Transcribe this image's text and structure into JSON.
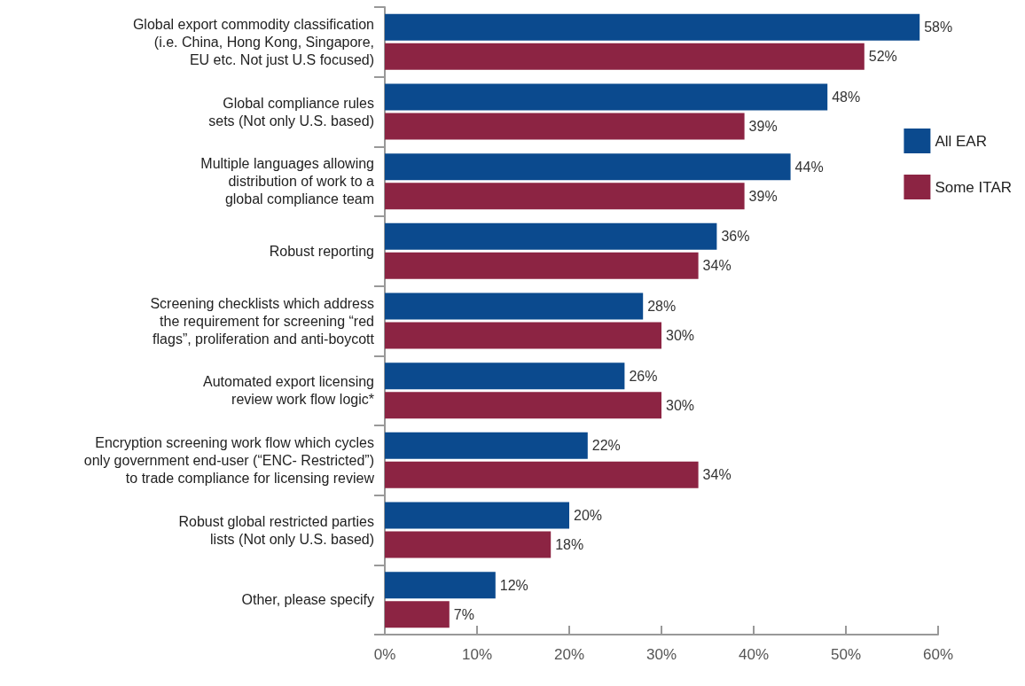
{
  "chart_data": {
    "type": "bar",
    "orientation": "horizontal",
    "categories": [
      "Global export commodity classification\n(i.e. China, Hong Kong, Singapore,\nEU etc. Not just U.S focused)",
      "Global compliance rules\nsets (Not only U.S. based)",
      "Multiple languages allowing\ndistribution of work to a\nglobal compliance team",
      "Robust reporting",
      "Screening checklists which address\nthe requirement for screening “red\nflags”, proliferation and anti-boycott",
      "Automated export licensing\nreview work flow logic*",
      "Encryption screening work flow which cycles\nonly government end-user (“ENC- Restricted”)\nto trade compliance for licensing review",
      "Robust global restricted parties\nlists (Not only U.S. based)",
      "Other, please specify"
    ],
    "series": [
      {
        "name": "All EAR",
        "color": "#0b4a8e",
        "values": [
          58,
          48,
          44,
          36,
          28,
          26,
          22,
          20,
          12
        ],
        "value_labels": [
          "58%",
          "48%",
          "44%",
          "36%",
          "28%",
          "26%",
          "22%",
          "20%",
          "12%"
        ]
      },
      {
        "name": "Some ITAR",
        "color": "#8c2443",
        "values": [
          52,
          39,
          39,
          34,
          30,
          30,
          34,
          18,
          7
        ],
        "value_labels": [
          "52%",
          "39%",
          "39%",
          "34%",
          "30%",
          "30%",
          "34%",
          "18%",
          "7%"
        ]
      }
    ],
    "xlim": [
      0,
      60
    ],
    "xticks": [
      {
        "value": 0,
        "label": "0%"
      },
      {
        "value": 10,
        "label": "10%"
      },
      {
        "value": 20,
        "label": "20%"
      },
      {
        "value": 30,
        "label": "30%"
      },
      {
        "value": 40,
        "label": "40%"
      },
      {
        "value": 50,
        "label": "50%"
      },
      {
        "value": 60,
        "label": "60%"
      }
    ],
    "grid": false,
    "legend": "right"
  }
}
